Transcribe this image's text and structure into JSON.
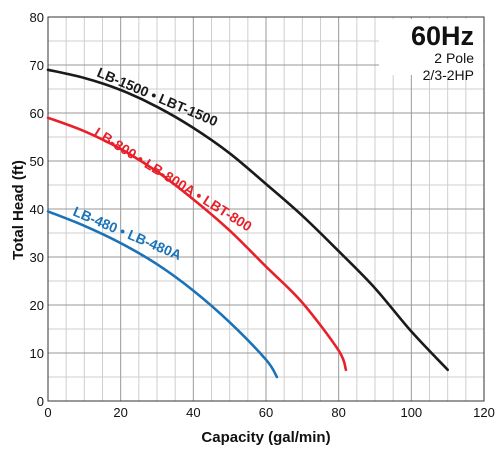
{
  "chart_data": {
    "type": "line",
    "title": "60Hz",
    "subtitle_lines": [
      "2 Pole",
      "2/3-2HP"
    ],
    "xlabel": "Capacity (gal/min)",
    "ylabel": "Total Head (ft)",
    "xlim": [
      0,
      120
    ],
    "ylim": [
      0,
      80
    ],
    "x_major_ticks": [
      0,
      20,
      40,
      60,
      80,
      100,
      120
    ],
    "y_major_ticks": [
      0,
      10,
      20,
      30,
      40,
      50,
      60,
      70,
      80
    ],
    "x_minor_step": 5,
    "y_minor_step": 5,
    "grid": true,
    "series": [
      {
        "name": "LB-1500 • LBT-1500",
        "color": "#1a1a1a",
        "x": [
          0,
          10,
          20,
          30,
          40,
          50,
          60,
          70,
          80,
          90,
          100,
          110
        ],
        "y": [
          69,
          67.3,
          64.8,
          61.3,
          56.9,
          51.6,
          45.2,
          38.6,
          31.2,
          23.5,
          14.5,
          6.5
        ]
      },
      {
        "name": "LB-800 • LB-800A • LBT-800",
        "color": "#e8202a",
        "x": [
          0,
          10,
          20,
          30,
          40,
          50,
          60,
          70,
          80,
          82
        ],
        "y": [
          59,
          56.2,
          52.5,
          47.8,
          42,
          35.5,
          28,
          20.5,
          10.5,
          6.5
        ]
      },
      {
        "name": "LB-480 • LB-480A",
        "color": "#1a72b8",
        "x": [
          0,
          10,
          20,
          30,
          40,
          50,
          60,
          63
        ],
        "y": [
          39.5,
          36.5,
          32.9,
          28.5,
          23,
          16.4,
          8.6,
          5
        ]
      }
    ]
  }
}
